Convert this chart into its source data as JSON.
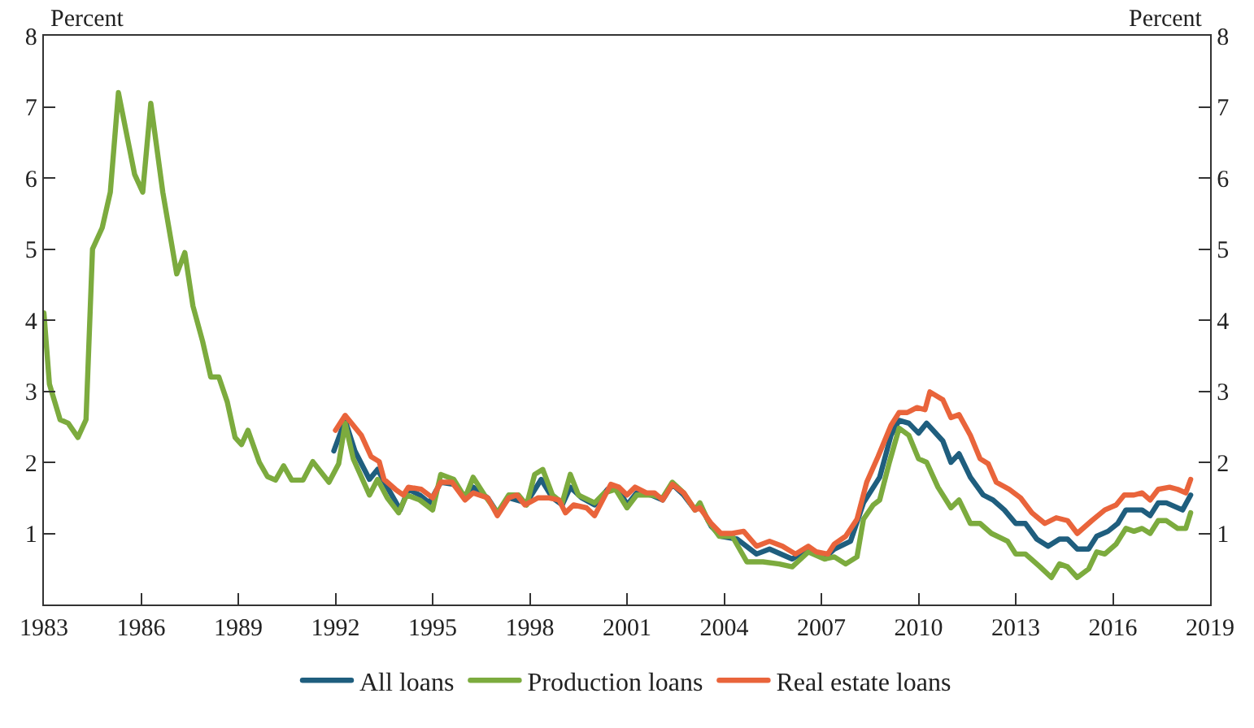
{
  "chart_data": {
    "type": "line",
    "ylabel": "Percent",
    "y2label": "Percent",
    "xlim": [
      1983,
      2019
    ],
    "xticks": [
      1983,
      1986,
      1989,
      1992,
      1995,
      1998,
      2001,
      2004,
      2007,
      2010,
      2013,
      2016,
      2019
    ],
    "ylim": [
      0,
      8
    ],
    "yticks": [
      1,
      2,
      3,
      4,
      5,
      6,
      7,
      8
    ],
    "y2lim": [
      0,
      8
    ],
    "y2ticks": [
      1,
      2,
      3,
      4,
      5,
      6,
      7,
      8
    ],
    "legend": "bottom",
    "marker": "none",
    "line_style": "solid",
    "series": [
      {
        "name": "All loans",
        "color": "#1f5e7e",
        "x": [
          1991.95,
          1992.3,
          1992.6,
          1993.05,
          1993.3,
          1993.6,
          1994.0,
          1994.25,
          1994.6,
          1994.9,
          1995.25,
          1995.65,
          1996.0,
          1996.25,
          1996.7,
          1997.0,
          1997.35,
          1997.9,
          1998.35,
          1998.7,
          1999.0,
          1999.25,
          1999.6,
          2000.0,
          2000.4,
          2000.75,
          2001.0,
          2001.3,
          2001.75,
          2002.1,
          2002.4,
          2002.75,
          2003.1,
          2003.25,
          2003.6,
          2003.9,
          2004.4,
          2005.0,
          2005.4,
          2006.1,
          2006.6,
          2007.1,
          2007.4,
          2007.9,
          2008.3,
          2008.8,
          2009.15,
          2009.4,
          2009.7,
          2010.0,
          2010.25,
          2010.75,
          2011.0,
          2011.25,
          2011.6,
          2012.0,
          2012.3,
          2012.65,
          2013.0,
          2013.3,
          2013.65,
          2014.0,
          2014.35,
          2014.6,
          2014.9,
          2015.25,
          2015.5,
          2015.85,
          2016.15,
          2016.4,
          2016.9,
          2017.15,
          2017.4,
          2017.65,
          2018.15,
          2018.4
        ],
        "values": [
          2.16,
          2.59,
          2.16,
          1.76,
          1.9,
          1.65,
          1.33,
          1.62,
          1.54,
          1.43,
          1.72,
          1.69,
          1.5,
          1.65,
          1.5,
          1.29,
          1.5,
          1.43,
          1.76,
          1.5,
          1.4,
          1.65,
          1.5,
          1.4,
          1.62,
          1.62,
          1.4,
          1.57,
          1.54,
          1.47,
          1.69,
          1.54,
          1.33,
          1.4,
          1.1,
          0.96,
          0.92,
          0.71,
          0.78,
          0.64,
          0.78,
          0.65,
          0.78,
          0.89,
          1.43,
          1.79,
          2.38,
          2.59,
          2.55,
          2.41,
          2.55,
          2.3,
          2.0,
          2.12,
          1.79,
          1.54,
          1.47,
          1.33,
          1.14,
          1.14,
          0.92,
          0.82,
          0.92,
          0.92,
          0.78,
          0.78,
          0.96,
          1.03,
          1.14,
          1.33,
          1.33,
          1.25,
          1.43,
          1.43,
          1.33,
          1.54
        ]
      },
      {
        "name": "Production loans",
        "color": "#7cab3e",
        "x": [
          1983.0,
          1983.17,
          1983.5,
          1983.75,
          1984.05,
          1984.3,
          1984.5,
          1984.8,
          1985.05,
          1985.3,
          1985.8,
          1986.05,
          1986.3,
          1986.67,
          1987.1,
          1987.35,
          1987.6,
          1987.9,
          1988.15,
          1988.4,
          1988.66,
          1988.9,
          1989.1,
          1989.3,
          1989.65,
          1989.9,
          1990.15,
          1990.4,
          1990.65,
          1991.0,
          1991.3,
          1991.8,
          1992.1,
          1992.3,
          1992.55,
          1993.05,
          1993.3,
          1993.6,
          1993.95,
          1994.2,
          1994.6,
          1995.0,
          1995.25,
          1995.65,
          1996.0,
          1996.25,
          1996.6,
          1997.0,
          1997.35,
          1997.65,
          1997.9,
          1998.15,
          1998.4,
          1998.7,
          1999.0,
          1999.25,
          1999.5,
          2000.0,
          2000.3,
          2000.65,
          2001.0,
          2001.3,
          2001.75,
          2002.1,
          2002.4,
          2002.75,
          2003.1,
          2003.25,
          2003.5,
          2003.85,
          2004.25,
          2004.7,
          2005.2,
          2005.7,
          2006.1,
          2006.6,
          2007.1,
          2007.4,
          2007.75,
          2008.1,
          2008.3,
          2008.6,
          2008.8,
          2009.1,
          2009.4,
          2009.7,
          2010.0,
          2010.25,
          2010.6,
          2011.0,
          2011.25,
          2011.6,
          2011.9,
          2012.25,
          2012.75,
          2013.0,
          2013.3,
          2013.75,
          2014.1,
          2014.35,
          2014.6,
          2014.9,
          2015.25,
          2015.5,
          2015.75,
          2016.1,
          2016.4,
          2016.65,
          2016.9,
          2017.15,
          2017.4,
          2017.65,
          2018.0,
          2018.25,
          2018.4
        ],
        "values": [
          4.1,
          3.1,
          2.6,
          2.55,
          2.35,
          2.6,
          5.0,
          5.3,
          5.8,
          7.2,
          6.05,
          5.8,
          7.05,
          5.8,
          4.65,
          4.95,
          4.2,
          3.7,
          3.2,
          3.2,
          2.85,
          2.35,
          2.25,
          2.45,
          2.0,
          1.8,
          1.75,
          1.95,
          1.75,
          1.75,
          2.01,
          1.72,
          1.98,
          2.55,
          2.05,
          1.54,
          1.76,
          1.5,
          1.29,
          1.54,
          1.47,
          1.33,
          1.83,
          1.76,
          1.5,
          1.79,
          1.54,
          1.29,
          1.54,
          1.54,
          1.4,
          1.83,
          1.9,
          1.54,
          1.43,
          1.83,
          1.54,
          1.43,
          1.57,
          1.62,
          1.36,
          1.54,
          1.54,
          1.5,
          1.72,
          1.57,
          1.33,
          1.43,
          1.18,
          0.96,
          0.96,
          0.6,
          0.6,
          0.57,
          0.53,
          0.74,
          0.64,
          0.67,
          0.57,
          0.67,
          1.2,
          1.4,
          1.47,
          2.0,
          2.48,
          2.38,
          2.05,
          2.0,
          1.65,
          1.36,
          1.47,
          1.14,
          1.14,
          1.0,
          0.89,
          0.71,
          0.71,
          0.53,
          0.38,
          0.57,
          0.53,
          0.38,
          0.5,
          0.74,
          0.71,
          0.85,
          1.07,
          1.03,
          1.07,
          1.0,
          1.18,
          1.18,
          1.07,
          1.07,
          1.29
        ]
      },
      {
        "name": "Real estate loans",
        "color": "#e9643b",
        "x": [
          1992.0,
          1992.3,
          1992.8,
          1993.1,
          1993.35,
          1993.5,
          1993.85,
          1994.1,
          1994.25,
          1994.65,
          1995.0,
          1995.25,
          1995.6,
          1996.0,
          1996.25,
          1996.7,
          1997.0,
          1997.35,
          1997.6,
          1997.85,
          1998.25,
          1998.6,
          1998.9,
          1999.1,
          1999.35,
          1999.75,
          2000.0,
          2000.5,
          2000.75,
          2001.0,
          2001.25,
          2001.6,
          2001.85,
          2002.1,
          2002.4,
          2002.75,
          2003.1,
          2003.25,
          2003.6,
          2003.9,
          2004.25,
          2004.6,
          2005.0,
          2005.4,
          2005.8,
          2006.2,
          2006.6,
          2006.85,
          2007.2,
          2007.4,
          2007.75,
          2008.1,
          2008.4,
          2008.75,
          2009.15,
          2009.4,
          2009.65,
          2009.95,
          2010.2,
          2010.35,
          2010.75,
          2011.0,
          2011.25,
          2011.6,
          2011.9,
          2012.15,
          2012.4,
          2012.8,
          2013.15,
          2013.5,
          2013.9,
          2014.25,
          2014.6,
          2014.9,
          2015.35,
          2015.75,
          2016.1,
          2016.35,
          2016.65,
          2016.9,
          2017.15,
          2017.4,
          2017.75,
          2018.0,
          2018.25,
          2018.4
        ],
        "values": [
          2.45,
          2.66,
          2.38,
          2.08,
          2.01,
          1.76,
          1.62,
          1.54,
          1.65,
          1.62,
          1.5,
          1.72,
          1.72,
          1.47,
          1.57,
          1.5,
          1.25,
          1.5,
          1.54,
          1.4,
          1.5,
          1.5,
          1.47,
          1.29,
          1.4,
          1.36,
          1.25,
          1.69,
          1.65,
          1.54,
          1.65,
          1.57,
          1.57,
          1.47,
          1.69,
          1.57,
          1.33,
          1.36,
          1.14,
          1.0,
          1.0,
          1.03,
          0.82,
          0.89,
          0.82,
          0.71,
          0.82,
          0.74,
          0.71,
          0.85,
          0.96,
          1.2,
          1.72,
          2.08,
          2.52,
          2.7,
          2.7,
          2.77,
          2.74,
          2.99,
          2.88,
          2.63,
          2.67,
          2.38,
          2.05,
          1.98,
          1.72,
          1.62,
          1.5,
          1.29,
          1.14,
          1.22,
          1.18,
          1.0,
          1.18,
          1.33,
          1.4,
          1.54,
          1.54,
          1.57,
          1.47,
          1.62,
          1.65,
          1.62,
          1.57,
          1.76
        ]
      }
    ]
  }
}
